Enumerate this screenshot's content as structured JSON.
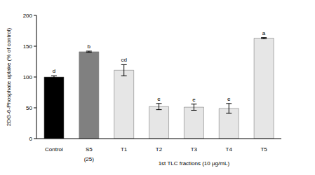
{
  "chart_data": {
    "type": "bar",
    "y_label": "2DG-6-Phosphate uptake (% of control)",
    "categories": [
      "Control",
      "S5",
      "T1",
      "T2",
      "T3",
      "T4",
      "T5"
    ],
    "values": [
      100,
      141,
      111,
      52,
      51,
      49,
      163
    ],
    "error": [
      2,
      1,
      9,
      5,
      5,
      8,
      1
    ],
    "colors": [
      "#000000",
      "#808080",
      "#e6e6e6",
      "#e6e6e6",
      "#e6e6e6",
      "#e6e6e6",
      "#e6e6e6"
    ],
    "ylim": [
      0,
      200
    ],
    "yticks": [
      0,
      50,
      100,
      150,
      200
    ],
    "grid": false,
    "annotations": {
      "letters": [
        "d",
        "b",
        "cd",
        "e",
        "e",
        "e",
        "a"
      ],
      "doses": [
        null,
        "(25)",
        null,
        null,
        null,
        null,
        null
      ],
      "group": "1st TLC fractions (10 μg/mL)",
      "group_categories": [
        "T1",
        "T2",
        "T3",
        "T4",
        "T5"
      ]
    }
  }
}
